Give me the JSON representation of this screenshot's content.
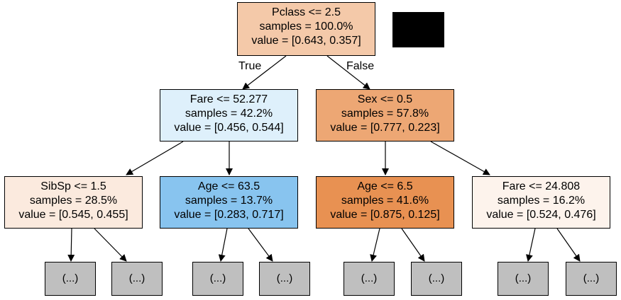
{
  "tree": {
    "root": {
      "condition": "Pclass <= 2.5",
      "samples": "samples = 100.0%",
      "value": "value = [0.643, 0.357]",
      "color": "#f4c9a9"
    },
    "left": {
      "condition": "Fare <= 52.277",
      "samples": "samples = 42.2%",
      "value": "value = [0.456, 0.544]",
      "color": "#def0fb"
    },
    "right": {
      "condition": "Sex <= 0.5",
      "samples": "samples = 57.8%",
      "value": "value = [0.777, 0.223]",
      "color": "#eda774"
    },
    "ll": {
      "condition": "SibSp <= 1.5",
      "samples": "samples = 28.5%",
      "value": "value = [0.545, 0.455]",
      "color": "#fbeade"
    },
    "lr": {
      "condition": "Age <= 63.5",
      "samples": "samples = 13.7%",
      "value": "value = [0.283, 0.717]",
      "color": "#88c4ef"
    },
    "rl": {
      "condition": "Age <= 6.5",
      "samples": "samples = 41.6%",
      "value": "value = [0.875, 0.125]",
      "color": "#e89152"
    },
    "rr": {
      "condition": "Fare <= 24.808",
      "samples": "samples = 16.2%",
      "value": "value = [0.524, 0.476]",
      "color": "#fdf3ec"
    }
  },
  "edge_labels": {
    "true": "True",
    "false": "False"
  },
  "leaf_text": "(...)",
  "colors": {
    "leaf": "#bfbfbf",
    "redaction": "#000000"
  }
}
